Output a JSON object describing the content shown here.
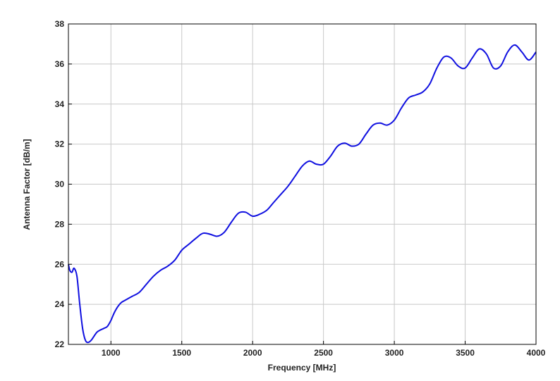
{
  "chart_data": {
    "type": "line",
    "title": "",
    "xlabel": "Frequency [MHz]",
    "ylabel": "Antenna Factor [dB/m]",
    "xlim": [
      700,
      4000
    ],
    "ylim": [
      22,
      38
    ],
    "xticks": [
      1000,
      1500,
      2000,
      2500,
      3000,
      3500,
      4000
    ],
    "yticks": [
      22,
      24,
      26,
      28,
      30,
      32,
      34,
      36,
      38
    ],
    "grid": true,
    "legend": "none",
    "series_color": "#1010e0",
    "series": [
      {
        "x": [
          700,
          710,
          725,
          740,
          760,
          780,
          800,
          820,
          840,
          860,
          880,
          900,
          920,
          950,
          975,
          1000,
          1025,
          1050,
          1075,
          1100,
          1150,
          1200,
          1250,
          1300,
          1350,
          1400,
          1450,
          1500,
          1550,
          1600,
          1650,
          1700,
          1750,
          1800,
          1850,
          1900,
          1950,
          2000,
          2050,
          2100,
          2150,
          2200,
          2250,
          2300,
          2350,
          2400,
          2450,
          2500,
          2550,
          2600,
          2650,
          2700,
          2750,
          2800,
          2850,
          2900,
          2950,
          3000,
          3050,
          3100,
          3150,
          3200,
          3250,
          3300,
          3350,
          3400,
          3450,
          3500,
          3550,
          3600,
          3650,
          3700,
          3750,
          3800,
          3850,
          3900,
          3950,
          4000
        ],
        "y": [
          26.0,
          25.7,
          25.6,
          25.8,
          25.4,
          24.0,
          22.8,
          22.2,
          22.1,
          22.2,
          22.4,
          22.6,
          22.7,
          22.8,
          22.9,
          23.2,
          23.6,
          23.9,
          24.1,
          24.2,
          24.4,
          24.6,
          25.0,
          25.4,
          25.7,
          25.9,
          26.2,
          26.7,
          27.0,
          27.3,
          27.55,
          27.5,
          27.4,
          27.6,
          28.1,
          28.55,
          28.6,
          28.4,
          28.5,
          28.7,
          29.1,
          29.5,
          29.9,
          30.4,
          30.9,
          31.15,
          31.0,
          31.0,
          31.4,
          31.9,
          32.05,
          31.9,
          32.0,
          32.5,
          32.95,
          33.05,
          32.95,
          33.2,
          33.8,
          34.3,
          34.45,
          34.6,
          35.0,
          35.8,
          36.35,
          36.3,
          35.9,
          35.8,
          36.3,
          36.75,
          36.5,
          35.8,
          35.9,
          36.6,
          36.95,
          36.6,
          36.2,
          36.6
        ]
      }
    ]
  }
}
